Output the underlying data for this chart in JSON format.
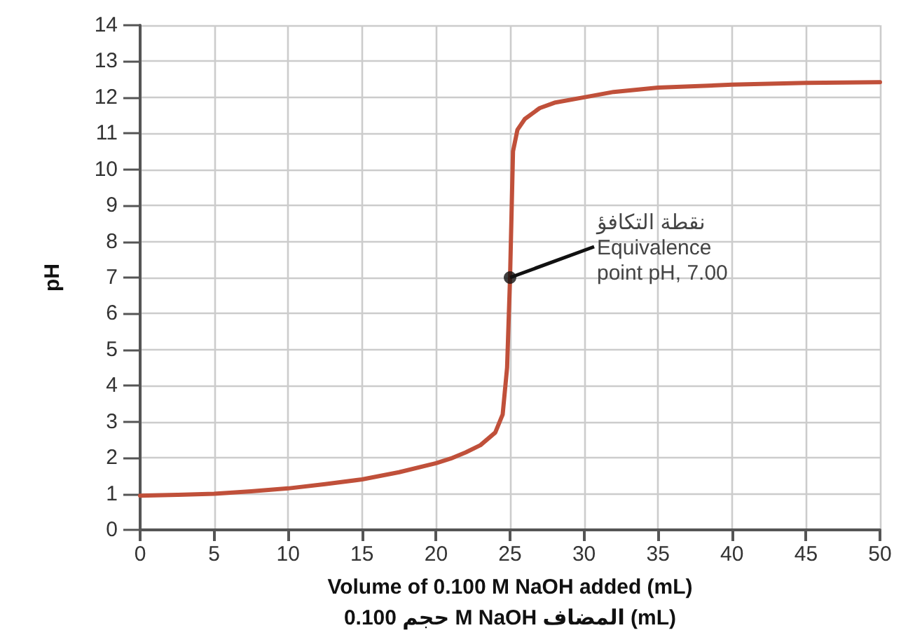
{
  "chart_data": {
    "type": "line",
    "xlabel": "Volume of 0.100 M NaOH added (mL)\nحجم 0.100 M NaOH المضاف (mL)",
    "ylabel": "pH",
    "x": [
      0,
      2.5,
      5,
      7.5,
      10,
      12.5,
      15,
      17.5,
      20,
      21,
      22,
      23,
      24,
      24.5,
      24.8,
      25,
      25.2,
      25.5,
      26,
      27,
      28,
      30,
      32,
      35,
      40,
      45,
      50
    ],
    "series": [
      {
        "color": "#c0503a",
        "values": [
          0.95,
          0.97,
          1.0,
          1.07,
          1.15,
          1.27,
          1.4,
          1.6,
          1.85,
          1.98,
          2.15,
          2.35,
          2.7,
          3.2,
          4.5,
          7,
          10.5,
          11.1,
          11.4,
          11.7,
          11.85,
          12.0,
          12.15,
          12.27,
          12.35,
          12.4,
          12.42
        ]
      }
    ],
    "xlim": [
      0,
      50
    ],
    "xticks": [
      0,
      5,
      10,
      15,
      20,
      25,
      30,
      35,
      40,
      45,
      50
    ],
    "ylim": [
      0,
      14
    ],
    "yticks": [
      0,
      1,
      2,
      3,
      4,
      5,
      6,
      7,
      8,
      9,
      10,
      11,
      12,
      13,
      14
    ],
    "grid": true,
    "marker": "none",
    "line_style": "solid",
    "annotations": [
      {
        "text": "نقطة التكافؤ\nEquivalence\npoint pH, 7.00",
        "x": 25,
        "y": 7
      }
    ]
  }
}
